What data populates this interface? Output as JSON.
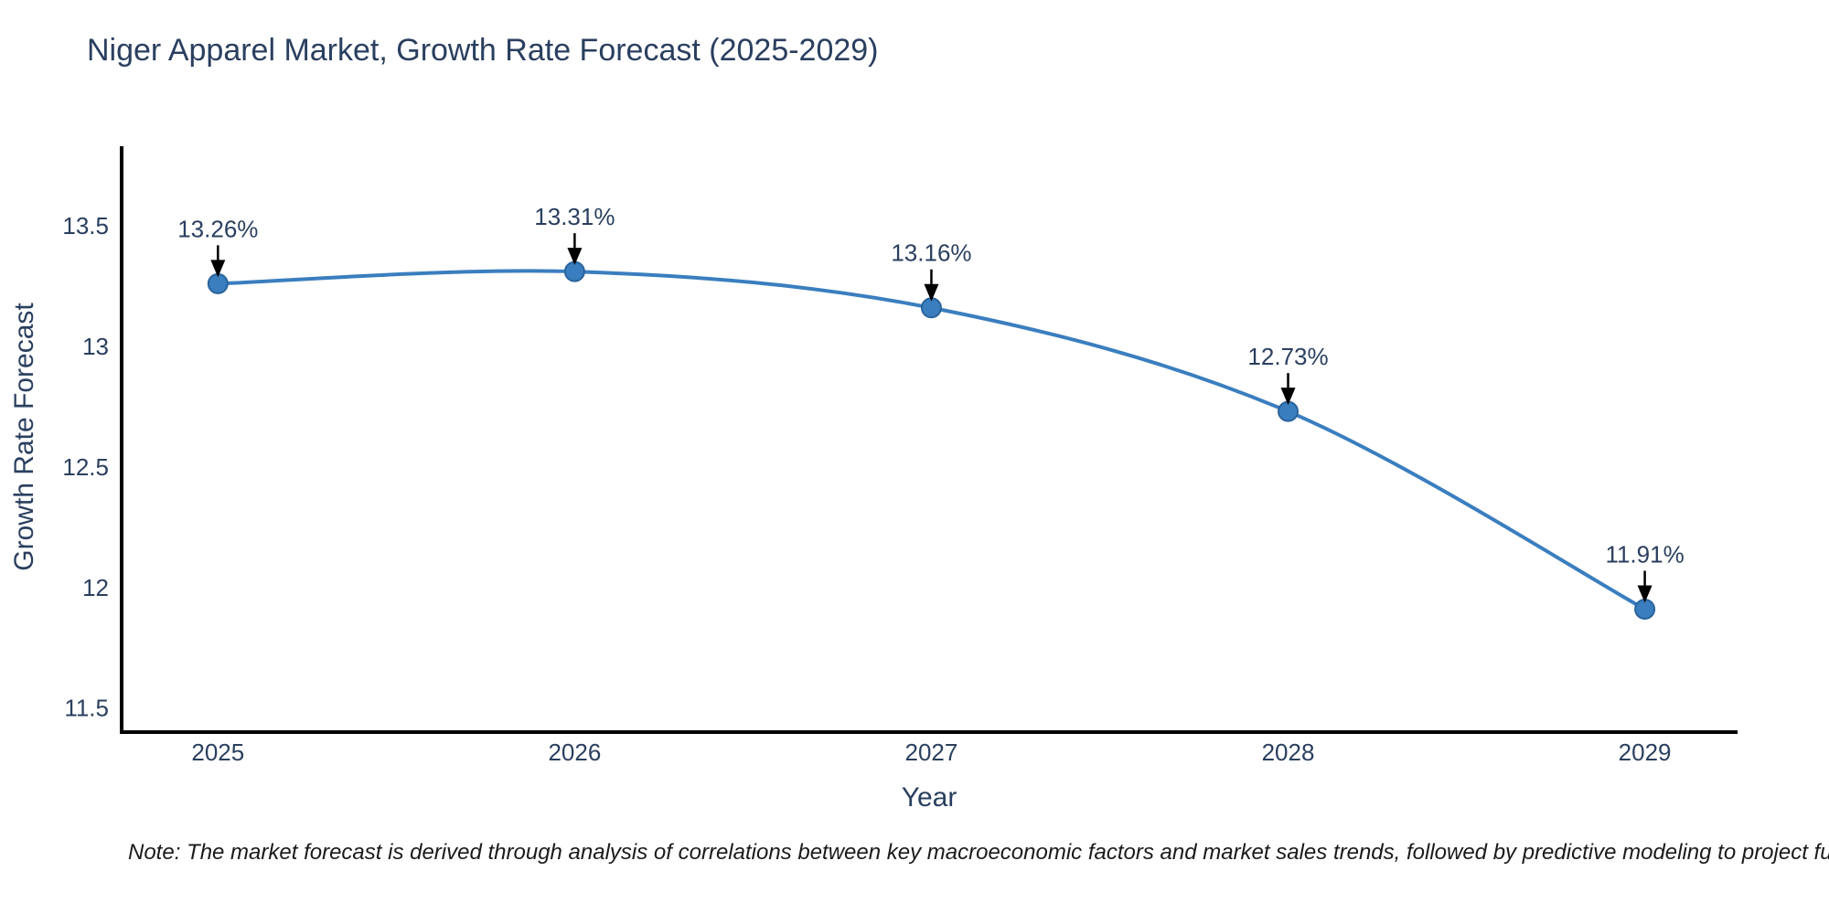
{
  "note": "Note: The market forecast is derived through analysis of correlations between key macroeconomic factors and market sales trends, followed by predictive modeling to project future sal",
  "chart_data": {
    "type": "line",
    "title": "Niger Apparel Market, Growth Rate Forecast (2025-2029)",
    "xlabel": "Year",
    "ylabel": "Growth Rate Forecast",
    "x": [
      2025,
      2026,
      2027,
      2028,
      2029
    ],
    "categories": [
      "2025",
      "2026",
      "2027",
      "2028",
      "2029"
    ],
    "values": [
      13.26,
      13.31,
      13.16,
      12.73,
      11.91
    ],
    "point_labels": [
      "13.26%",
      "13.31%",
      "13.16%",
      "12.73%",
      "11.91%"
    ],
    "yticks": [
      11.5,
      12,
      12.5,
      13,
      13.5
    ],
    "ytick_labels": [
      "11.5",
      "12",
      "12.5",
      "13",
      "13.5"
    ],
    "xlim": [
      2024.73,
      2029.26
    ],
    "ylim": [
      11.4,
      13.83
    ],
    "grid": false,
    "legend": "none",
    "line_shape": "spline",
    "colors": {
      "line": "#3a7ebf",
      "marker": "#3a7ebf",
      "marker_edge": "#2a639c",
      "axis": "#000000",
      "tick_text": "#2a3f5f",
      "annotation_text": "#2a3f5f",
      "annotation_arrow": "#000000",
      "note_text": "#1a1a1a",
      "background": "#ffffff"
    }
  }
}
